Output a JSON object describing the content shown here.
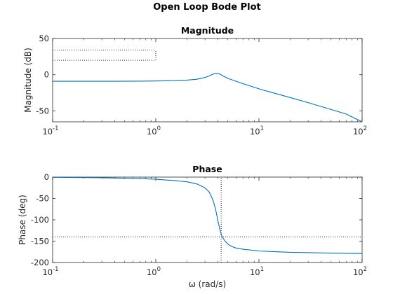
{
  "title": "Open Loop Bode Plot",
  "chart_data": [
    {
      "type": "line",
      "title": "Magnitude",
      "xlabel": "",
      "ylabel": "Magnitude (dB)",
      "xscale": "log",
      "xlim": [
        0.1,
        100
      ],
      "ylim": [
        -65,
        50
      ],
      "ytick_values": [
        50,
        0,
        -50
      ],
      "yticks": [
        "50",
        "0",
        "-50"
      ],
      "xtick_values": [
        0.1,
        1,
        10,
        100
      ],
      "xticks": [
        {
          "base": "10",
          "exp": "-1"
        },
        {
          "base": "10",
          "exp": "0"
        },
        {
          "base": "10",
          "exp": "1"
        },
        {
          "base": "10",
          "exp": "2"
        }
      ],
      "series": [
        {
          "color": "#0072BD",
          "x": [
            0.1,
            0.2,
            0.4,
            0.7,
            1,
            1.5,
            2,
            2.5,
            3,
            3.3,
            3.6,
            3.9,
            4.2,
            4.5,
            5,
            6,
            7,
            10,
            15,
            20,
            30,
            50,
            70,
            100
          ],
          "y": [
            -9,
            -9,
            -9,
            -8.9,
            -8.7,
            -8.2,
            -7.4,
            -6.2,
            -3.8,
            -1.6,
            0.9,
            2.0,
            0.8,
            -1.8,
            -5.0,
            -9.0,
            -12.3,
            -19.5,
            -26.5,
            -31.5,
            -38.5,
            -48.0,
            -54.3,
            -65.5
          ]
        }
      ],
      "annotations": [
        {
          "type": "dotted-hline",
          "y": 34,
          "x_from": 0.1,
          "x_to": 1
        },
        {
          "type": "dotted-hline",
          "y": 20,
          "x_from": 0.1,
          "x_to": 1
        },
        {
          "type": "dotted-vline",
          "x": 1,
          "y_from": 20,
          "y_to": 34
        }
      ],
      "grid": false
    },
    {
      "type": "line",
      "title": "Phase",
      "xlabel": "ω (rad/s)",
      "ylabel": "Phase (deg)",
      "xscale": "log",
      "xlim": [
        0.1,
        100
      ],
      "ylim": [
        -200,
        0
      ],
      "ytick_values": [
        0,
        -50,
        -100,
        -150,
        -200
      ],
      "yticks": [
        "0",
        "-50",
        "-100",
        "-150",
        "-200"
      ],
      "xtick_values": [
        0.1,
        1,
        10,
        100
      ],
      "xticks": [
        {
          "base": "10",
          "exp": "-1"
        },
        {
          "base": "10",
          "exp": "0"
        },
        {
          "base": "10",
          "exp": "1"
        },
        {
          "base": "10",
          "exp": "2"
        }
      ],
      "series": [
        {
          "color": "#0072BD",
          "x": [
            0.1,
            0.3,
            0.7,
            1,
            1.5,
            2,
            2.5,
            3,
            3.3,
            3.6,
            3.8,
            4.0,
            4.2,
            4.4,
            4.7,
            5,
            5.5,
            6,
            7,
            10,
            20,
            50,
            100
          ],
          "y": [
            -0.5,
            -1.5,
            -3.5,
            -5,
            -8,
            -11,
            -16,
            -25,
            -35,
            -55,
            -75,
            -102,
            -125,
            -140,
            -150,
            -157,
            -163,
            -166,
            -169,
            -173,
            -176,
            -178,
            -179
          ]
        }
      ],
      "annotations": [
        {
          "type": "dotted-hline",
          "y": -140,
          "x_from": 0.1,
          "x_to": 100
        },
        {
          "type": "dotted-vline",
          "x": 4.3,
          "y_from": -200,
          "y_to": 0
        }
      ],
      "grid": false
    }
  ]
}
